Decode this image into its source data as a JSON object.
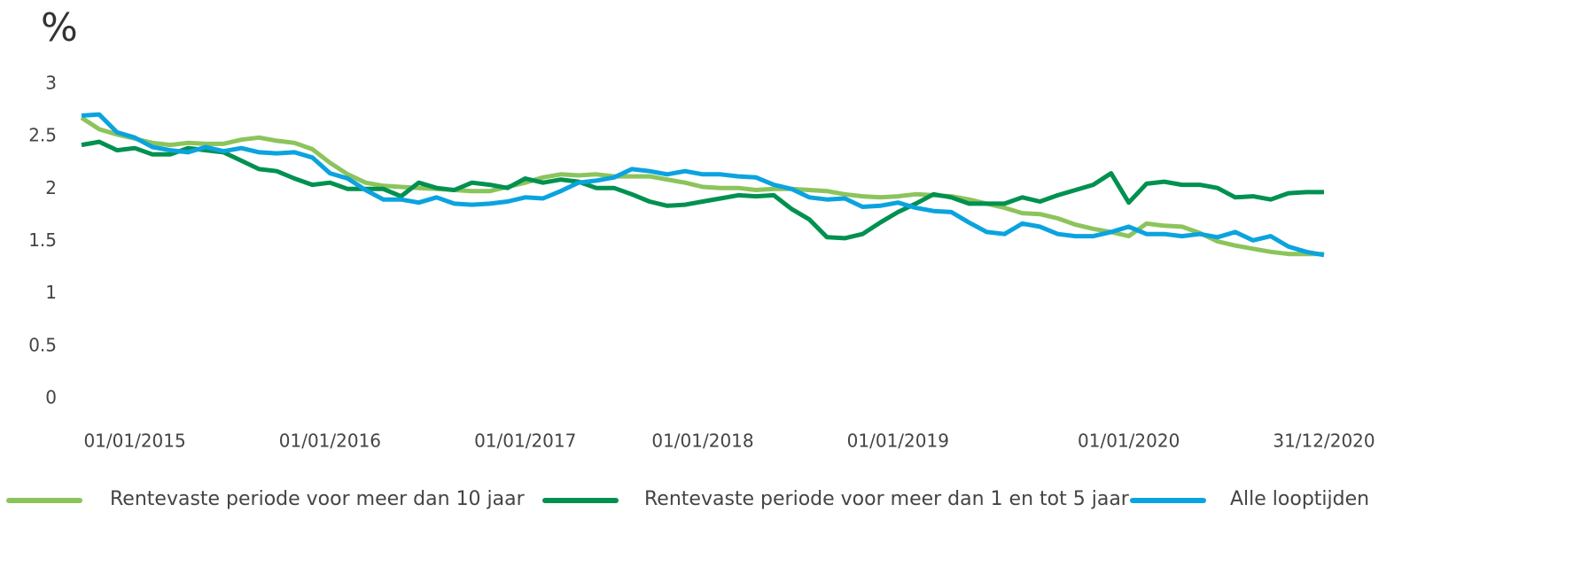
{
  "chart_data": {
    "type": "line",
    "y_label": "%",
    "categories": [
      null,
      null,
      null,
      "01/01/2015",
      null,
      null,
      null,
      null,
      null,
      null,
      null,
      null,
      null,
      null,
      "01/01/2016",
      null,
      null,
      null,
      null,
      null,
      null,
      null,
      null,
      null,
      null,
      "01/01/2017",
      null,
      null,
      null,
      null,
      null,
      null,
      null,
      null,
      null,
      "01/01/2018",
      null,
      null,
      null,
      null,
      null,
      null,
      null,
      null,
      null,
      null,
      "01/01/2019",
      null,
      null,
      null,
      null,
      null,
      null,
      null,
      null,
      null,
      null,
      null,
      null,
      "01/01/2020",
      null,
      null,
      null,
      null,
      null,
      null,
      null,
      null,
      null,
      null,
      "31/12/2020"
    ],
    "series": [
      {
        "name": "Rentevaste periode voor meer dan 10 jaar",
        "color": "#8cc45c",
        "values": [
          2.68,
          2.57,
          2.52,
          2.48,
          2.44,
          2.42,
          2.44,
          2.43,
          2.43,
          2.47,
          2.49,
          2.46,
          2.44,
          2.38,
          2.25,
          2.14,
          2.06,
          2.03,
          2.02,
          2.01,
          2.0,
          1.99,
          1.98,
          1.98,
          2.02,
          2.06,
          2.11,
          2.14,
          2.13,
          2.14,
          2.12,
          2.12,
          2.12,
          2.09,
          2.06,
          2.02,
          2.01,
          2.01,
          1.99,
          2.0,
          2.0,
          1.99,
          1.98,
          1.95,
          1.93,
          1.92,
          1.93,
          1.95,
          1.94,
          1.93,
          1.9,
          1.86,
          1.82,
          1.77,
          1.76,
          1.72,
          1.66,
          1.62,
          1.59,
          1.55,
          1.67,
          1.65,
          1.64,
          1.58,
          1.5,
          1.46,
          1.43,
          1.4,
          1.38,
          1.38,
          1.38
        ]
      },
      {
        "name": "Rentevaste periode voor meer dan 1 en tot 5 jaar",
        "color": "#009150",
        "values": [
          2.42,
          2.45,
          2.37,
          2.39,
          2.33,
          2.33,
          2.39,
          2.37,
          2.35,
          2.27,
          2.19,
          2.17,
          2.1,
          2.04,
          2.06,
          2.0,
          2.0,
          2.0,
          1.93,
          2.06,
          2.01,
          1.99,
          2.06,
          2.04,
          2.01,
          2.1,
          2.06,
          2.09,
          2.07,
          2.01,
          2.01,
          1.95,
          1.88,
          1.84,
          1.85,
          1.88,
          1.91,
          1.94,
          1.93,
          1.94,
          1.81,
          1.71,
          1.54,
          1.53,
          1.57,
          1.68,
          1.78,
          1.86,
          1.95,
          1.92,
          1.86,
          1.86,
          1.86,
          1.92,
          1.88,
          1.94,
          1.99,
          2.04,
          2.15,
          1.87,
          2.05,
          2.07,
          2.04,
          2.04,
          2.01,
          1.92,
          1.93,
          1.9,
          1.96,
          1.97,
          1.97
        ]
      },
      {
        "name": "Alle looptijden",
        "color": "#0ba3df",
        "values": [
          2.7,
          2.71,
          2.54,
          2.49,
          2.4,
          2.37,
          2.35,
          2.4,
          2.36,
          2.39,
          2.35,
          2.34,
          2.35,
          2.3,
          2.15,
          2.1,
          1.99,
          1.9,
          1.9,
          1.87,
          1.92,
          1.86,
          1.85,
          1.86,
          1.88,
          1.92,
          1.91,
          1.98,
          2.06,
          2.08,
          2.11,
          2.19,
          2.17,
          2.14,
          2.17,
          2.14,
          2.14,
          2.12,
          2.11,
          2.04,
          2.0,
          1.92,
          1.9,
          1.91,
          1.83,
          1.84,
          1.87,
          1.82,
          1.79,
          1.78,
          1.68,
          1.59,
          1.57,
          1.67,
          1.64,
          1.57,
          1.55,
          1.55,
          1.59,
          1.64,
          1.57,
          1.57,
          1.55,
          1.57,
          1.54,
          1.59,
          1.51,
          1.55,
          1.45,
          1.4,
          1.37
        ]
      }
    ],
    "ylim": [
      0,
      3
    ],
    "yticks": [
      0,
      0.5,
      1,
      1.5,
      2,
      2.5,
      3
    ],
    "grid": false,
    "legend": "bottom"
  }
}
